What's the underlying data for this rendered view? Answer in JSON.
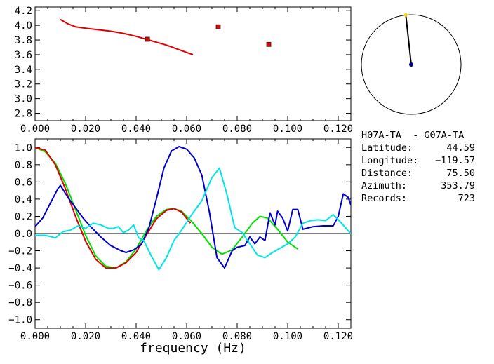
{
  "chart_data": [
    {
      "type": "scatter",
      "xlim": [
        0.0,
        0.125
      ],
      "ylim": [
        2.7,
        4.25
      ],
      "xticks": [
        "0.000",
        "0.020",
        "0.040",
        "0.060",
        "0.080",
        "0.100",
        "0.120"
      ],
      "xtick_values": [
        0.0,
        0.02,
        0.04,
        0.06,
        0.08,
        0.1,
        0.12
      ],
      "yticks": [
        "2.8",
        "3.0",
        "3.2",
        "3.4",
        "3.6",
        "3.8",
        "4.0",
        "4.2"
      ],
      "ytick_values": [
        2.8,
        3.0,
        3.2,
        3.4,
        3.6,
        3.8,
        4.0,
        4.2
      ],
      "grid": false,
      "series": [
        {
          "kind": "line",
          "color": "#e00000",
          "x": [
            0.01,
            0.013,
            0.016,
            0.02,
            0.025,
            0.03,
            0.035,
            0.04,
            0.044,
            0.048,
            0.052,
            0.056,
            0.06,
            0.0625
          ],
          "y": [
            4.08,
            4.02,
            3.98,
            3.96,
            3.94,
            3.92,
            3.89,
            3.85,
            3.81,
            3.77,
            3.73,
            3.68,
            3.63,
            3.6
          ]
        },
        {
          "kind": "markers",
          "color": "#e00000",
          "x": [
            0.0445,
            0.0725,
            0.0925
          ],
          "y": [
            3.81,
            3.98,
            3.74
          ]
        }
      ]
    },
    {
      "type": "line",
      "xlim": [
        0.0,
        0.125
      ],
      "ylim": [
        -1.1,
        1.1
      ],
      "xlabel": "frequency (Hz)",
      "xticks": [
        "0.000",
        "0.020",
        "0.040",
        "0.060",
        "0.080",
        "0.100",
        "0.120"
      ],
      "xtick_values": [
        0.0,
        0.02,
        0.04,
        0.06,
        0.08,
        0.1,
        0.12
      ],
      "yticks": [
        "1.0",
        "0.8",
        "0.6",
        "0.4",
        "0.2",
        "0.0",
        "−0.2",
        "−0.4",
        "−0.6",
        "−0.8",
        "−1.0"
      ],
      "ytick_values": [
        1.0,
        0.8,
        0.6,
        0.4,
        0.2,
        0.0,
        -0.2,
        -0.4,
        -0.6,
        -0.8,
        -1.0
      ],
      "grid": false,
      "zero_line": true,
      "series": [
        {
          "color": "#00e000",
          "x": [
            0.0,
            0.004,
            0.008,
            0.012,
            0.016,
            0.02,
            0.024,
            0.028,
            0.032,
            0.036,
            0.04,
            0.044,
            0.048,
            0.052,
            0.055,
            0.058,
            0.062,
            0.066,
            0.07,
            0.074,
            0.078,
            0.082,
            0.086,
            0.089,
            0.092,
            0.096,
            0.1,
            0.104
          ],
          "y": [
            1.0,
            0.95,
            0.82,
            0.58,
            0.28,
            -0.02,
            -0.26,
            -0.38,
            -0.4,
            -0.33,
            -0.18,
            0.03,
            0.2,
            0.28,
            0.29,
            0.26,
            0.14,
            0.0,
            -0.16,
            -0.24,
            -0.19,
            -0.04,
            0.12,
            0.2,
            0.18,
            0.05,
            -0.1,
            -0.18
          ]
        },
        {
          "color": "#e00000",
          "x": [
            0.0,
            0.004,
            0.008,
            0.012,
            0.016,
            0.02,
            0.024,
            0.028,
            0.032,
            0.036,
            0.04,
            0.044,
            0.048,
            0.052,
            0.055,
            0.058,
            0.0615
          ],
          "y": [
            1.0,
            0.97,
            0.8,
            0.52,
            0.2,
            -0.09,
            -0.3,
            -0.4,
            -0.4,
            -0.34,
            -0.22,
            -0.02,
            0.17,
            0.27,
            0.29,
            0.25,
            0.12
          ]
        },
        {
          "color": "#0000cc",
          "x": [
            0.0,
            0.003,
            0.006,
            0.009,
            0.01,
            0.013,
            0.016,
            0.019,
            0.022,
            0.026,
            0.03,
            0.034,
            0.036,
            0.039,
            0.042,
            0.045,
            0.048,
            0.051,
            0.054,
            0.057,
            0.06,
            0.063,
            0.066,
            0.069,
            0.072,
            0.075,
            0.078,
            0.08,
            0.083,
            0.085,
            0.087,
            0.089,
            0.091,
            0.093,
            0.095,
            0.096,
            0.098,
            0.1,
            0.102,
            0.104,
            0.106,
            0.11,
            0.114,
            0.118,
            0.12,
            0.122,
            0.124,
            0.125
          ],
          "y": [
            0.08,
            0.18,
            0.35,
            0.52,
            0.56,
            0.42,
            0.3,
            0.18,
            0.08,
            -0.04,
            -0.14,
            -0.2,
            -0.22,
            -0.19,
            -0.13,
            0.06,
            0.4,
            0.76,
            0.96,
            1.01,
            0.98,
            0.88,
            0.68,
            0.25,
            -0.28,
            -0.4,
            -0.2,
            -0.16,
            -0.14,
            -0.04,
            -0.12,
            -0.04,
            -0.08,
            0.24,
            0.1,
            0.26,
            0.18,
            0.03,
            0.28,
            0.28,
            0.05,
            0.08,
            0.09,
            0.09,
            0.2,
            0.46,
            0.42,
            0.33
          ]
        },
        {
          "color": "#00e5e5",
          "x": [
            0.0,
            0.004,
            0.008,
            0.011,
            0.014,
            0.017,
            0.02,
            0.023,
            0.026,
            0.029,
            0.031,
            0.033,
            0.035,
            0.037,
            0.039,
            0.041,
            0.043,
            0.046,
            0.049,
            0.052,
            0.055,
            0.058,
            0.062,
            0.066,
            0.07,
            0.073,
            0.076,
            0.079,
            0.082,
            0.085,
            0.088,
            0.091,
            0.094,
            0.097,
            0.1,
            0.103,
            0.106,
            0.109,
            0.112,
            0.115,
            0.118,
            0.121,
            0.124,
            0.125
          ],
          "y": [
            -0.02,
            -0.02,
            -0.05,
            0.02,
            0.04,
            0.09,
            0.06,
            0.12,
            0.1,
            0.06,
            0.06,
            0.08,
            0.01,
            0.04,
            0.1,
            -0.05,
            -0.08,
            -0.26,
            -0.42,
            -0.28,
            -0.08,
            0.04,
            0.22,
            0.38,
            0.65,
            0.76,
            0.45,
            0.07,
            0.01,
            -0.12,
            -0.25,
            -0.28,
            -0.22,
            -0.17,
            -0.12,
            -0.04,
            0.12,
            0.15,
            0.16,
            0.15,
            0.22,
            0.13,
            0.03,
            0.0
          ]
        }
      ]
    }
  ],
  "direction_circle": {
    "azimuth_deg": 353.79,
    "circle_color": "#000000",
    "line_color": "#000000",
    "center_dot_color": "#000080",
    "end_dot_color": "#ffd700"
  },
  "info": {
    "title": "H07A-TA  - G07A-TA",
    "rows": [
      {
        "label": "Latitude:",
        "value": "44.59"
      },
      {
        "label": "Longitude:",
        "value": "−119.57"
      },
      {
        "label": "Distance:",
        "value": "75.50"
      },
      {
        "label": "Azimuth:",
        "value": "353.79"
      },
      {
        "label": "Records:",
        "value": "723"
      }
    ]
  }
}
